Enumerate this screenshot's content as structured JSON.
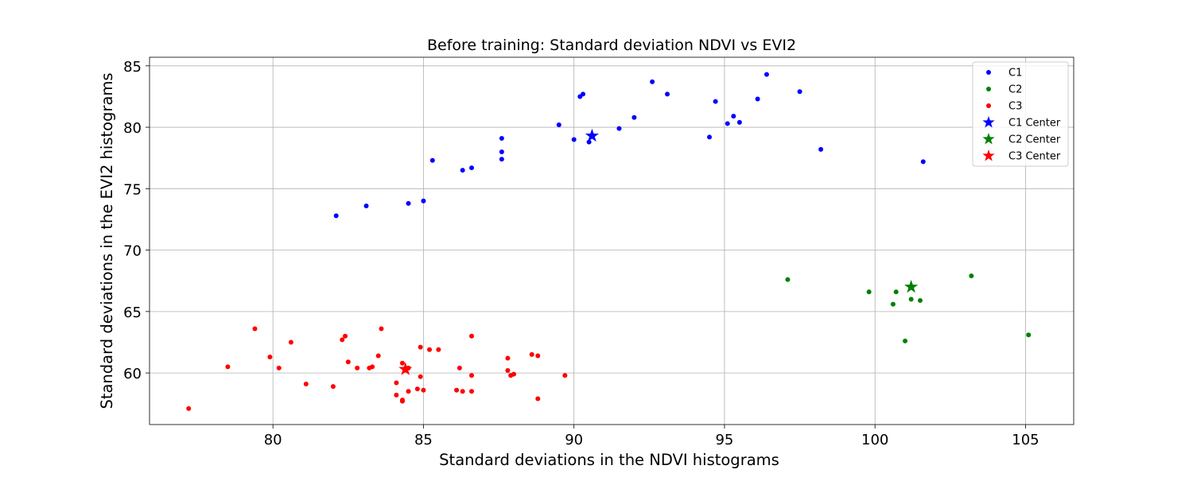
{
  "chart_data": {
    "type": "scatter",
    "title": "Before training: Standard deviation NDVI vs EVI2",
    "xlabel": "Standard deviations in the NDVI histograms",
    "ylabel": "Standard deviations in the EVI2 histograms",
    "xlim": [
      75.9,
      106.6
    ],
    "ylim": [
      55.8,
      85.7
    ],
    "xticks": [
      80,
      85,
      90,
      95,
      100,
      105
    ],
    "yticks": [
      60,
      65,
      70,
      75,
      80,
      85
    ],
    "grid": true,
    "legend_position": "top-right",
    "series": [
      {
        "name": "C1",
        "color": "#0000ff",
        "marker": "dot",
        "points": [
          [
            82.1,
            72.8
          ],
          [
            83.1,
            73.6
          ],
          [
            84.5,
            73.8
          ],
          [
            85.0,
            74.0
          ],
          [
            85.3,
            77.3
          ],
          [
            86.3,
            76.5
          ],
          [
            86.6,
            76.7
          ],
          [
            87.6,
            77.4
          ],
          [
            87.6,
            78.0
          ],
          [
            87.6,
            79.1
          ],
          [
            89.5,
            80.2
          ],
          [
            90.0,
            79.0
          ],
          [
            90.2,
            82.5
          ],
          [
            90.3,
            82.7
          ],
          [
            90.5,
            78.8
          ],
          [
            91.5,
            79.9
          ],
          [
            92.0,
            80.8
          ],
          [
            92.6,
            83.7
          ],
          [
            93.1,
            82.7
          ],
          [
            94.5,
            79.2
          ],
          [
            94.7,
            82.1
          ],
          [
            95.1,
            80.3
          ],
          [
            95.3,
            80.9
          ],
          [
            95.5,
            80.4
          ],
          [
            96.1,
            82.3
          ],
          [
            96.4,
            84.3
          ],
          [
            97.5,
            82.9
          ],
          [
            98.2,
            78.2
          ],
          [
            101.6,
            77.2
          ]
        ]
      },
      {
        "name": "C2",
        "color": "#008000",
        "marker": "dot",
        "points": [
          [
            97.1,
            67.6
          ],
          [
            99.8,
            66.6
          ],
          [
            100.6,
            65.6
          ],
          [
            100.7,
            66.6
          ],
          [
            101.0,
            62.6
          ],
          [
            101.2,
            66.0
          ],
          [
            101.5,
            65.9
          ],
          [
            103.2,
            67.9
          ],
          [
            105.1,
            63.1
          ]
        ]
      },
      {
        "name": "C3",
        "color": "#ff0000",
        "marker": "dot",
        "points": [
          [
            77.2,
            57.1
          ],
          [
            78.5,
            60.5
          ],
          [
            79.4,
            63.6
          ],
          [
            79.9,
            61.3
          ],
          [
            80.2,
            60.4
          ],
          [
            80.6,
            62.5
          ],
          [
            81.1,
            59.1
          ],
          [
            82.0,
            58.9
          ],
          [
            82.3,
            62.7
          ],
          [
            82.4,
            63.0
          ],
          [
            82.5,
            60.9
          ],
          [
            82.8,
            60.4
          ],
          [
            83.2,
            60.4
          ],
          [
            83.3,
            60.5
          ],
          [
            83.5,
            61.4
          ],
          [
            83.6,
            63.6
          ],
          [
            84.1,
            59.2
          ],
          [
            84.1,
            58.2
          ],
          [
            84.3,
            57.8
          ],
          [
            84.3,
            57.7
          ],
          [
            84.3,
            60.8
          ],
          [
            84.5,
            60.4
          ],
          [
            84.5,
            58.5
          ],
          [
            84.8,
            58.7
          ],
          [
            84.9,
            59.7
          ],
          [
            84.9,
            62.1
          ],
          [
            85.0,
            58.6
          ],
          [
            85.2,
            61.9
          ],
          [
            85.5,
            61.9
          ],
          [
            86.1,
            58.6
          ],
          [
            86.2,
            60.4
          ],
          [
            86.3,
            58.5
          ],
          [
            86.6,
            58.5
          ],
          [
            86.6,
            59.8
          ],
          [
            86.6,
            63.0
          ],
          [
            87.8,
            60.2
          ],
          [
            87.8,
            61.2
          ],
          [
            87.9,
            59.8
          ],
          [
            88.0,
            59.9
          ],
          [
            88.6,
            61.5
          ],
          [
            88.8,
            61.4
          ],
          [
            88.8,
            57.9
          ],
          [
            89.7,
            59.8
          ]
        ]
      },
      {
        "name": "C1 Center",
        "color": "#0000ff",
        "marker": "star",
        "points": [
          [
            90.6,
            79.3
          ]
        ]
      },
      {
        "name": "C2 Center",
        "color": "#008000",
        "marker": "star",
        "points": [
          [
            101.2,
            67.0
          ]
        ]
      },
      {
        "name": "C3 Center",
        "color": "#ff0000",
        "marker": "star",
        "points": [
          [
            84.4,
            60.3
          ]
        ]
      }
    ]
  }
}
